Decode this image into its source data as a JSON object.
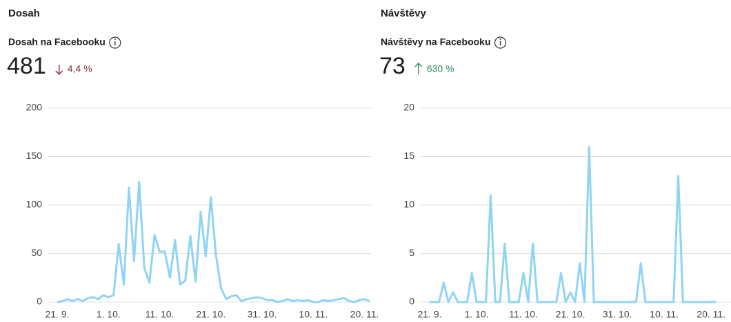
{
  "chart_data": [
    {
      "type": "line",
      "section": "Dosah",
      "title": "Dosah na Facebooku",
      "total": 481,
      "change": "4,4 %",
      "trend": "down",
      "color": "#8fd4f2",
      "categories": [
        "21. 9.",
        null,
        null,
        null,
        null,
        null,
        null,
        null,
        null,
        null,
        "1. 10.",
        null,
        null,
        null,
        null,
        null,
        null,
        null,
        null,
        null,
        "11. 10.",
        null,
        null,
        null,
        null,
        null,
        null,
        null,
        null,
        null,
        "21. 10.",
        null,
        null,
        null,
        null,
        null,
        null,
        null,
        null,
        null,
        "31. 10.",
        null,
        null,
        null,
        null,
        null,
        null,
        null,
        null,
        null,
        "10. 11.",
        null,
        null,
        null,
        null,
        null,
        null,
        null,
        null,
        null,
        "20. 11.",
        null
      ],
      "values": [
        0,
        1,
        3,
        1,
        3,
        1,
        4,
        5,
        3,
        7,
        5,
        7,
        60,
        18,
        118,
        42,
        124,
        35,
        20,
        69,
        52,
        52,
        25,
        64,
        18,
        22,
        68,
        21,
        93,
        47,
        108,
        48,
        14,
        3,
        6,
        7,
        1,
        3,
        4,
        5,
        4,
        2,
        2,
        0,
        1,
        3,
        1,
        2,
        1,
        2,
        0,
        0,
        2,
        1,
        2,
        3,
        4,
        1,
        0,
        2,
        3,
        1
      ],
      "ylim": [
        0,
        200
      ],
      "yticks": [
        0,
        50,
        100,
        150,
        200
      ],
      "grid": true
    },
    {
      "type": "line",
      "section": "Návštěvy",
      "title": "Návštěvy na Facebooku",
      "total": 73,
      "change": "630 %",
      "trend": "up",
      "color": "#8fd4f2",
      "categories": [
        "21. 9.",
        null,
        null,
        null,
        null,
        null,
        null,
        null,
        null,
        null,
        "1. 10.",
        null,
        null,
        null,
        null,
        null,
        null,
        null,
        null,
        null,
        "11. 10.",
        null,
        null,
        null,
        null,
        null,
        null,
        null,
        null,
        null,
        "21. 10.",
        null,
        null,
        null,
        null,
        null,
        null,
        null,
        null,
        null,
        "31. 10.",
        null,
        null,
        null,
        null,
        null,
        null,
        null,
        null,
        null,
        "10. 11.",
        null,
        null,
        null,
        null,
        null,
        null,
        null,
        null,
        null,
        "20. 11.",
        null
      ],
      "values": [
        0,
        0,
        0,
        2,
        0,
        1,
        0,
        0,
        0,
        3,
        0,
        0,
        0,
        11,
        0,
        0,
        6,
        0,
        0,
        0,
        3,
        0,
        6,
        0,
        0,
        0,
        0,
        0,
        3,
        0,
        1,
        0,
        4,
        0,
        16,
        0,
        0,
        0,
        0,
        0,
        0,
        0,
        0,
        0,
        0,
        4,
        0,
        0,
        0,
        0,
        0,
        0,
        0,
        13,
        0,
        0,
        0,
        0,
        0,
        0,
        0,
        0
      ],
      "ylim": [
        0,
        20
      ],
      "yticks": [
        0,
        5,
        10,
        15,
        20
      ],
      "grid": true
    }
  ]
}
